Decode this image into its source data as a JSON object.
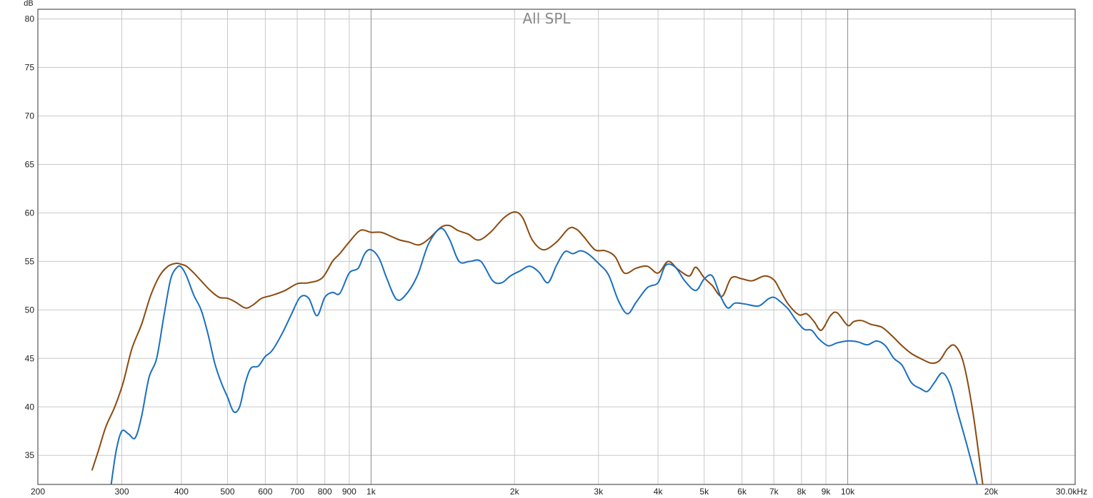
{
  "chart_data": {
    "type": "line",
    "title": "All SPL",
    "xlabel": "",
    "ylabel": "",
    "y_unit_label": "dB",
    "x_scale": "log",
    "xlim": [
      200,
      30000
    ],
    "ylim": [
      32,
      81
    ],
    "grid": true,
    "y_ticks": [
      35,
      40,
      45,
      50,
      55,
      60,
      65,
      70,
      75,
      80
    ],
    "x_ticks": [
      {
        "value": 200,
        "label": "200"
      },
      {
        "value": 300,
        "label": "300"
      },
      {
        "value": 400,
        "label": "400"
      },
      {
        "value": 500,
        "label": "500"
      },
      {
        "value": 600,
        "label": "600"
      },
      {
        "value": 700,
        "label": "700"
      },
      {
        "value": 800,
        "label": "800"
      },
      {
        "value": 900,
        "label": "900"
      },
      {
        "value": 1000,
        "label": "1k"
      },
      {
        "value": 2000,
        "label": "2k"
      },
      {
        "value": 3000,
        "label": "3k"
      },
      {
        "value": 4000,
        "label": "4k"
      },
      {
        "value": 5000,
        "label": "5k"
      },
      {
        "value": 6000,
        "label": "6k"
      },
      {
        "value": 7000,
        "label": "7k"
      },
      {
        "value": 8000,
        "label": "8k"
      },
      {
        "value": 9000,
        "label": "9k"
      },
      {
        "value": 10000,
        "label": "10k"
      },
      {
        "value": 20000,
        "label": "20k"
      },
      {
        "value": 30000,
        "label": "30.0kHz"
      }
    ],
    "series": [
      {
        "color": "#8b4a0f",
        "x": [
          260,
          268,
          278,
          290,
          302,
          315,
          330,
          345,
          360,
          375,
          390,
          400,
          410,
          425,
          440,
          460,
          480,
          500,
          520,
          545,
          565,
          590,
          620,
          660,
          700,
          740,
          790,
          830,
          860,
          900,
          950,
          1000,
          1050,
          1100,
          1150,
          1200,
          1260,
          1320,
          1400,
          1460,
          1520,
          1600,
          1680,
          1780,
          1900,
          2000,
          2080,
          2180,
          2300,
          2450,
          2600,
          2700,
          2800,
          2950,
          3100,
          3250,
          3400,
          3600,
          3800,
          4000,
          4200,
          4400,
          4650,
          4800,
          5000,
          5200,
          5450,
          5700,
          6000,
          6300,
          6700,
          7000,
          7200,
          7500,
          7900,
          8200,
          8500,
          8800,
          9200,
          9500,
          10000,
          10300,
          10700,
          11200,
          11800,
          12400,
          13000,
          13600,
          14200,
          15000,
          15600,
          16200,
          16800,
          17500,
          18300,
          19200
        ],
        "y": [
          33.5,
          35.5,
          38,
          40,
          42.5,
          46,
          48.5,
          51.5,
          53.5,
          54.5,
          54.8,
          54.7,
          54.5,
          53.8,
          53,
          52,
          51.3,
          51.2,
          50.8,
          50.2,
          50.5,
          51.2,
          51.5,
          52,
          52.7,
          52.8,
          53.3,
          55,
          55.8,
          57,
          58.2,
          58,
          58,
          57.6,
          57.2,
          57,
          56.7,
          57.3,
          58.5,
          58.7,
          58.2,
          57.8,
          57.2,
          58,
          59.5,
          60.1,
          59.5,
          57.2,
          56.2,
          57,
          58.4,
          58.3,
          57.5,
          56.2,
          56.1,
          55.5,
          53.8,
          54.3,
          54.5,
          53.8,
          55,
          54.2,
          53.5,
          54.4,
          53.3,
          52.5,
          51.4,
          53.3,
          53.2,
          53.0,
          53.5,
          53.1,
          52.1,
          50.6,
          49.5,
          49.6,
          48.8,
          47.9,
          49.4,
          49.7,
          48.4,
          48.8,
          48.9,
          48.5,
          48.2,
          47.3,
          46.3,
          45.5,
          45.0,
          44.5,
          44.8,
          46.0,
          46.3,
          44.5,
          39.5,
          32
        ]
      },
      {
        "color": "#1a6fbf",
        "x": [
          285,
          292,
          300,
          310,
          320,
          330,
          342,
          355,
          368,
          380,
          392,
          400,
          410,
          425,
          440,
          455,
          470,
          485,
          500,
          515,
          530,
          545,
          560,
          580,
          600,
          620,
          650,
          680,
          710,
          740,
          770,
          800,
          830,
          860,
          900,
          940,
          970,
          1000,
          1040,
          1080,
          1130,
          1180,
          1250,
          1320,
          1400,
          1460,
          1530,
          1610,
          1700,
          1800,
          1880,
          1960,
          2050,
          2150,
          2250,
          2350,
          2450,
          2550,
          2650,
          2750,
          2850,
          3000,
          3150,
          3300,
          3450,
          3600,
          3800,
          4000,
          4150,
          4350,
          4550,
          4800,
          5000,
          5200,
          5400,
          5600,
          5800,
          6100,
          6500,
          6800,
          7000,
          7200,
          7500,
          7800,
          8100,
          8400,
          8700,
          9100,
          9500,
          10000,
          10500,
          11000,
          11500,
          12000,
          12500,
          13000,
          13600,
          14200,
          14700,
          15200,
          15800,
          16400,
          17000,
          17800,
          18700
        ],
        "y": [
          32,
          35.5,
          37.5,
          37.2,
          36.8,
          39,
          43,
          45,
          49.5,
          53.2,
          54.4,
          54.4,
          53.5,
          51.5,
          50,
          47.5,
          44.5,
          42.5,
          41,
          39.5,
          40,
          42.5,
          44,
          44.2,
          45.2,
          45.8,
          47.5,
          49.5,
          51.3,
          51.2,
          49.4,
          51.3,
          51.8,
          51.7,
          53.8,
          54.3,
          55.8,
          56.2,
          55.3,
          53.2,
          51.1,
          51.5,
          53.5,
          56.8,
          58.4,
          57.3,
          55,
          55,
          55,
          53,
          52.8,
          53.5,
          54,
          54.5,
          53.9,
          52.8,
          54.6,
          56,
          55.8,
          56.1,
          55.8,
          54.8,
          53.6,
          51,
          49.6,
          50.8,
          52.3,
          52.8,
          54.6,
          54.4,
          53,
          52,
          53.2,
          53.5,
          51.5,
          50.2,
          50.7,
          50.6,
          50.4,
          51.1,
          51.3,
          50.9,
          50.1,
          48.9,
          48.0,
          47.9,
          47.0,
          46.3,
          46.6,
          46.8,
          46.7,
          46.4,
          46.8,
          46.3,
          45.0,
          44.3,
          42.5,
          41.9,
          41.6,
          42.5,
          43.5,
          42.3,
          39.5,
          36,
          32
        ]
      }
    ]
  }
}
